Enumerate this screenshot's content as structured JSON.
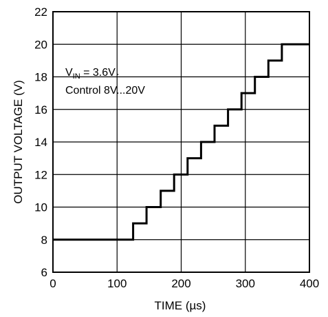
{
  "chart_data": {
    "type": "line",
    "title": "",
    "xlabel": "TIME (µs)",
    "ylabel": "OUTPUT VOLTAGE (V)",
    "xlim": [
      0,
      400
    ],
    "ylim": [
      6,
      22
    ],
    "xticks": [
      0,
      100,
      200,
      300,
      400
    ],
    "yticks": [
      6,
      8,
      10,
      12,
      14,
      16,
      18,
      20,
      22
    ],
    "xtick_labels": [
      "0",
      "100",
      "200",
      "300",
      "400"
    ],
    "ytick_labels": [
      "6",
      "8",
      "10",
      "12",
      "14",
      "16",
      "18",
      "20",
      "22"
    ],
    "grid": true,
    "annotation": {
      "line1_prefix": "V",
      "line1_subscript": "IN",
      "line1_suffix": " = 3.6V",
      "line2": "Control 8V...20V"
    },
    "series": [
      {
        "x": [
          0,
          125,
          125,
          146,
          146,
          168,
          168,
          189,
          189,
          210,
          210,
          231,
          231,
          252,
          252,
          273,
          273,
          294,
          294,
          315,
          315,
          336,
          336,
          357,
          357,
          400
        ],
        "y": [
          8,
          8,
          9,
          9,
          10,
          10,
          11,
          11,
          12,
          12,
          13,
          13,
          14,
          14,
          15,
          15,
          16,
          16,
          17,
          17,
          18,
          18,
          19,
          19,
          20,
          20
        ]
      }
    ]
  }
}
